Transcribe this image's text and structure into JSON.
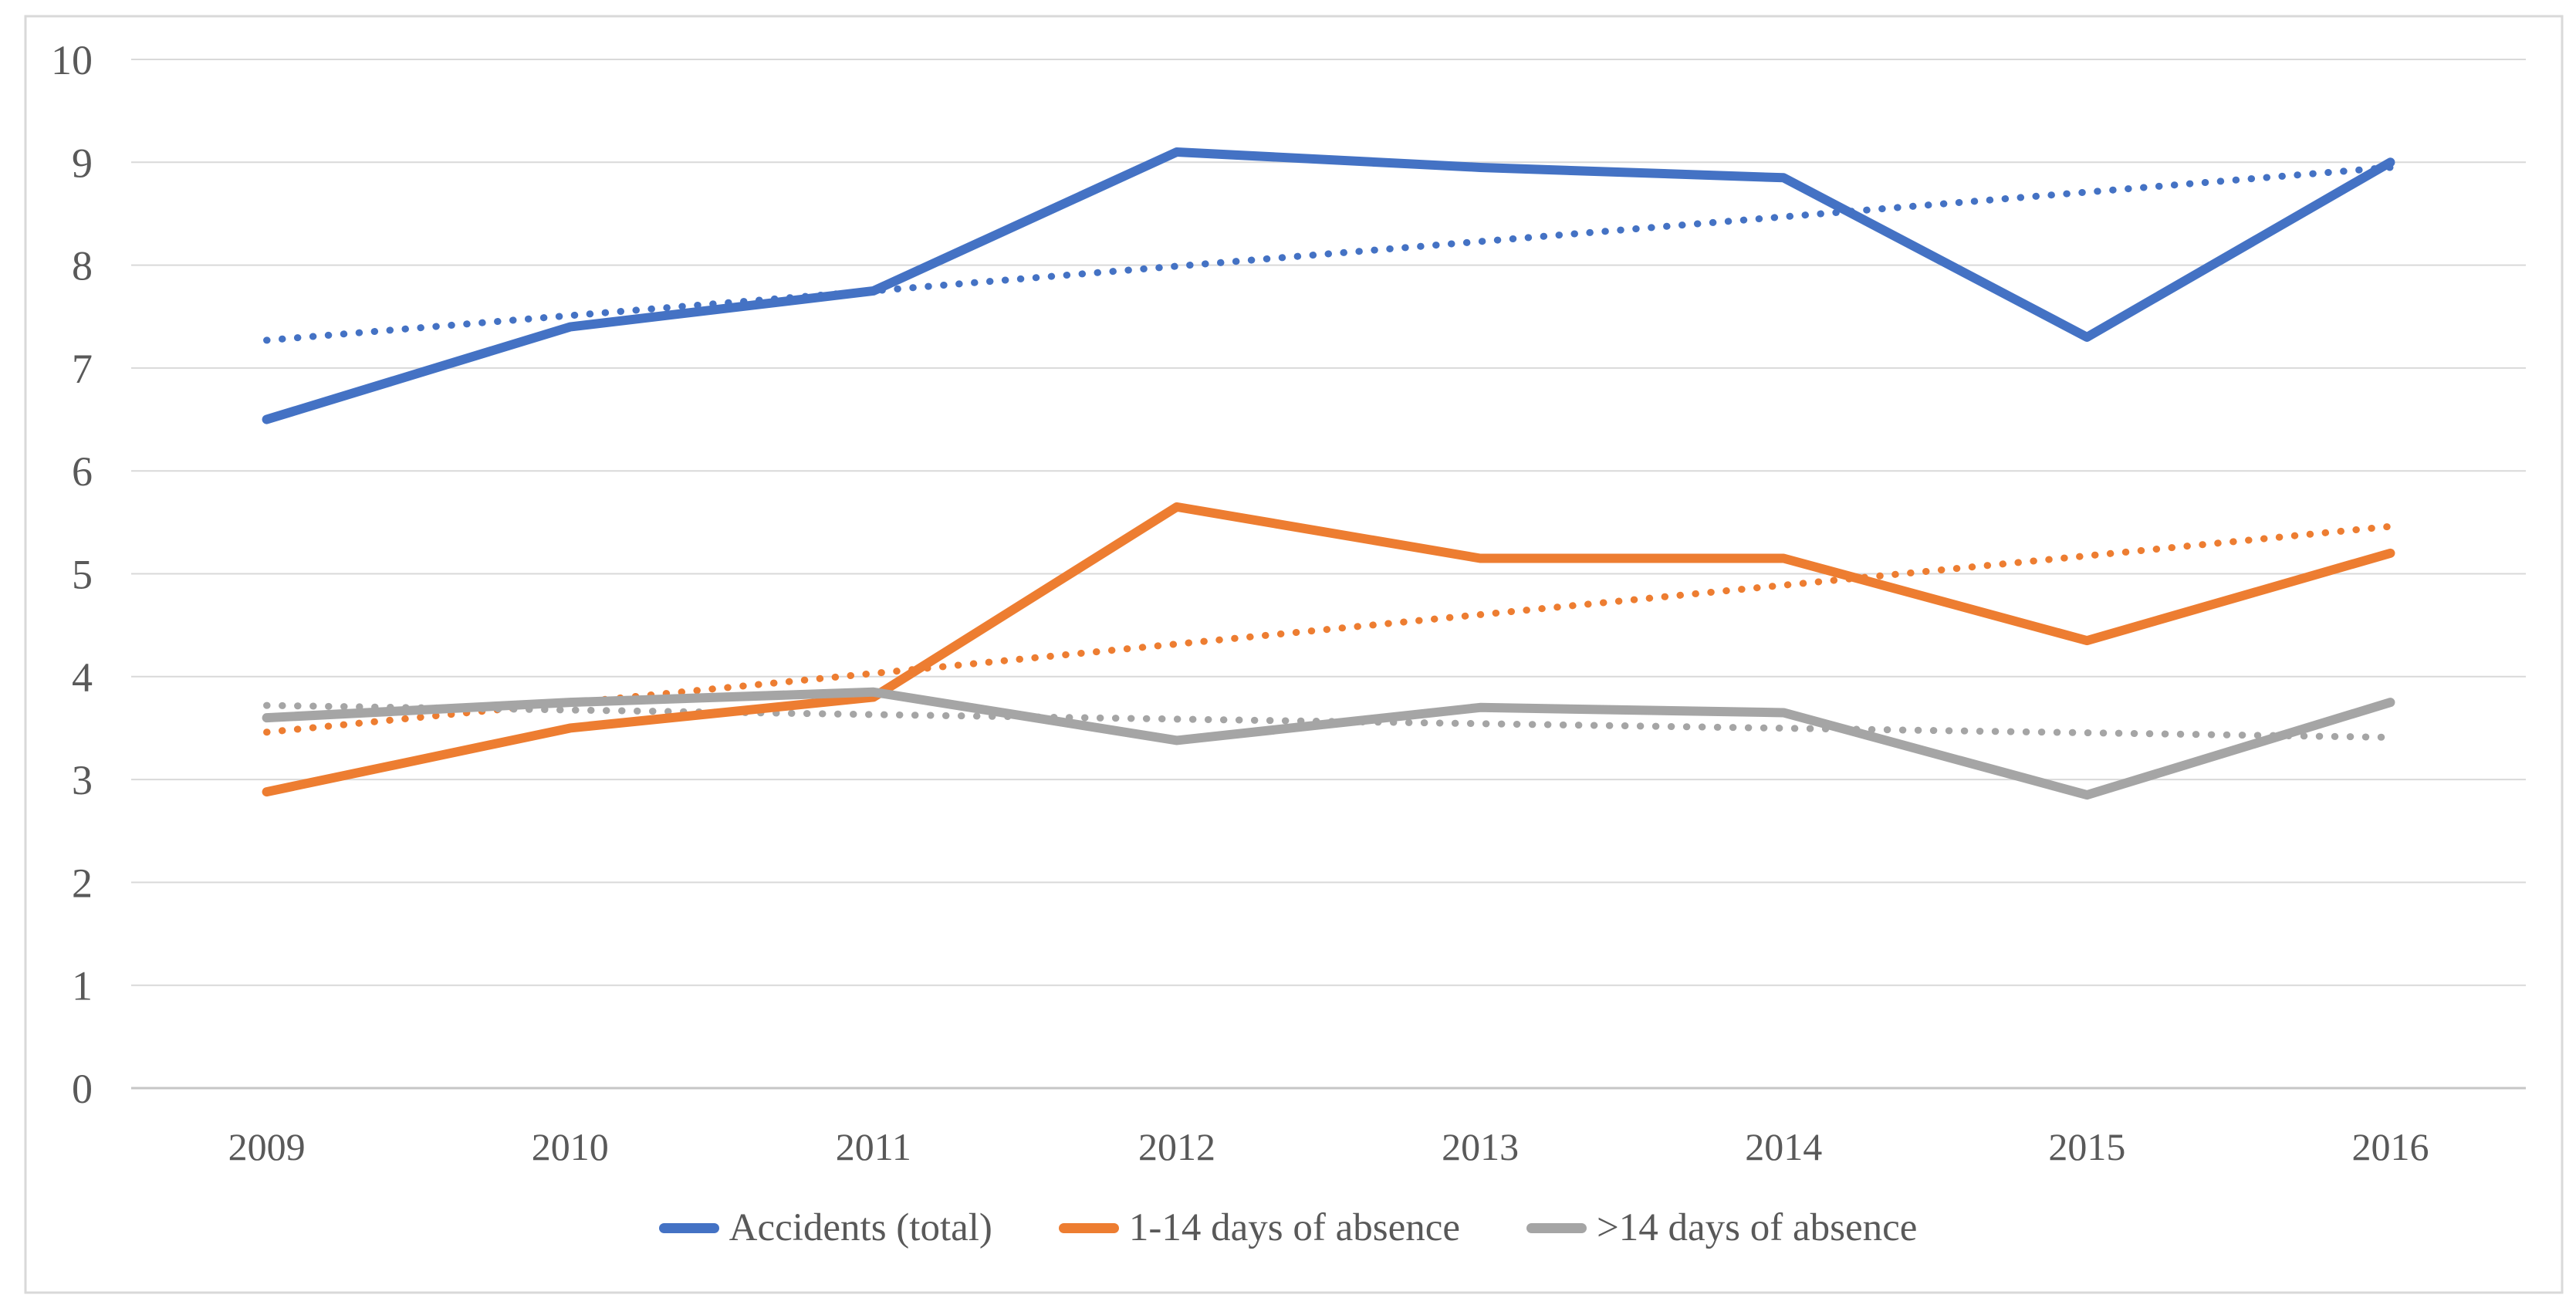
{
  "chart_data": {
    "type": "line",
    "title": "",
    "xlabel": "",
    "ylabel": "",
    "categories": [
      "2009",
      "2010",
      "2011",
      "2012",
      "2013",
      "2014",
      "2015",
      "2016"
    ],
    "ylim": [
      0,
      10
    ],
    "y_ticks": [
      "0",
      "1",
      "2",
      "3",
      "4",
      "5",
      "6",
      "7",
      "8",
      "9",
      "10"
    ],
    "grid": true,
    "legend_position": "bottom",
    "series": [
      {
        "name": "Accidents (total)",
        "color": "#4472C4",
        "style": "solid",
        "values": [
          6.5,
          7.4,
          7.75,
          9.1,
          8.95,
          8.85,
          7.3,
          9.0
        ]
      },
      {
        "name": "1-14 days of absence",
        "color": "#ED7D31",
        "style": "solid",
        "values": [
          2.88,
          3.5,
          3.8,
          5.65,
          5.15,
          5.15,
          4.35,
          5.2
        ]
      },
      {
        "name": ">14 days of absence",
        "color": "#A5A5A5",
        "style": "solid",
        "values": [
          3.6,
          3.75,
          3.85,
          3.38,
          3.7,
          3.65,
          2.85,
          3.75
        ]
      }
    ],
    "trendlines": [
      {
        "series": "Accidents (total)",
        "color": "#4472C4",
        "style": "dotted",
        "start": 7.27,
        "end": 8.95
      },
      {
        "series": "1-14 days of absence",
        "color": "#ED7D31",
        "style": "dotted",
        "start": 3.46,
        "end": 5.46
      },
      {
        "series": ">14 days of absence",
        "color": "#A5A5A5",
        "style": "dotted",
        "start": 3.72,
        "end": 3.41
      }
    ]
  },
  "colors": {
    "background": "#FFFFFF",
    "figure_border": "#D9D9D9",
    "gridline": "#D9D9D9",
    "axis_line": "#C6C6C6",
    "tick_text": "#595959",
    "legend_text": "#595959"
  },
  "legend": {
    "items": [
      {
        "label": "Accidents (total)",
        "color": "#4472C4"
      },
      {
        "label": "1-14 days of absence",
        "color": "#ED7D31"
      },
      {
        "label": ">14 days of absence",
        "color": "#A5A5A5"
      }
    ]
  }
}
